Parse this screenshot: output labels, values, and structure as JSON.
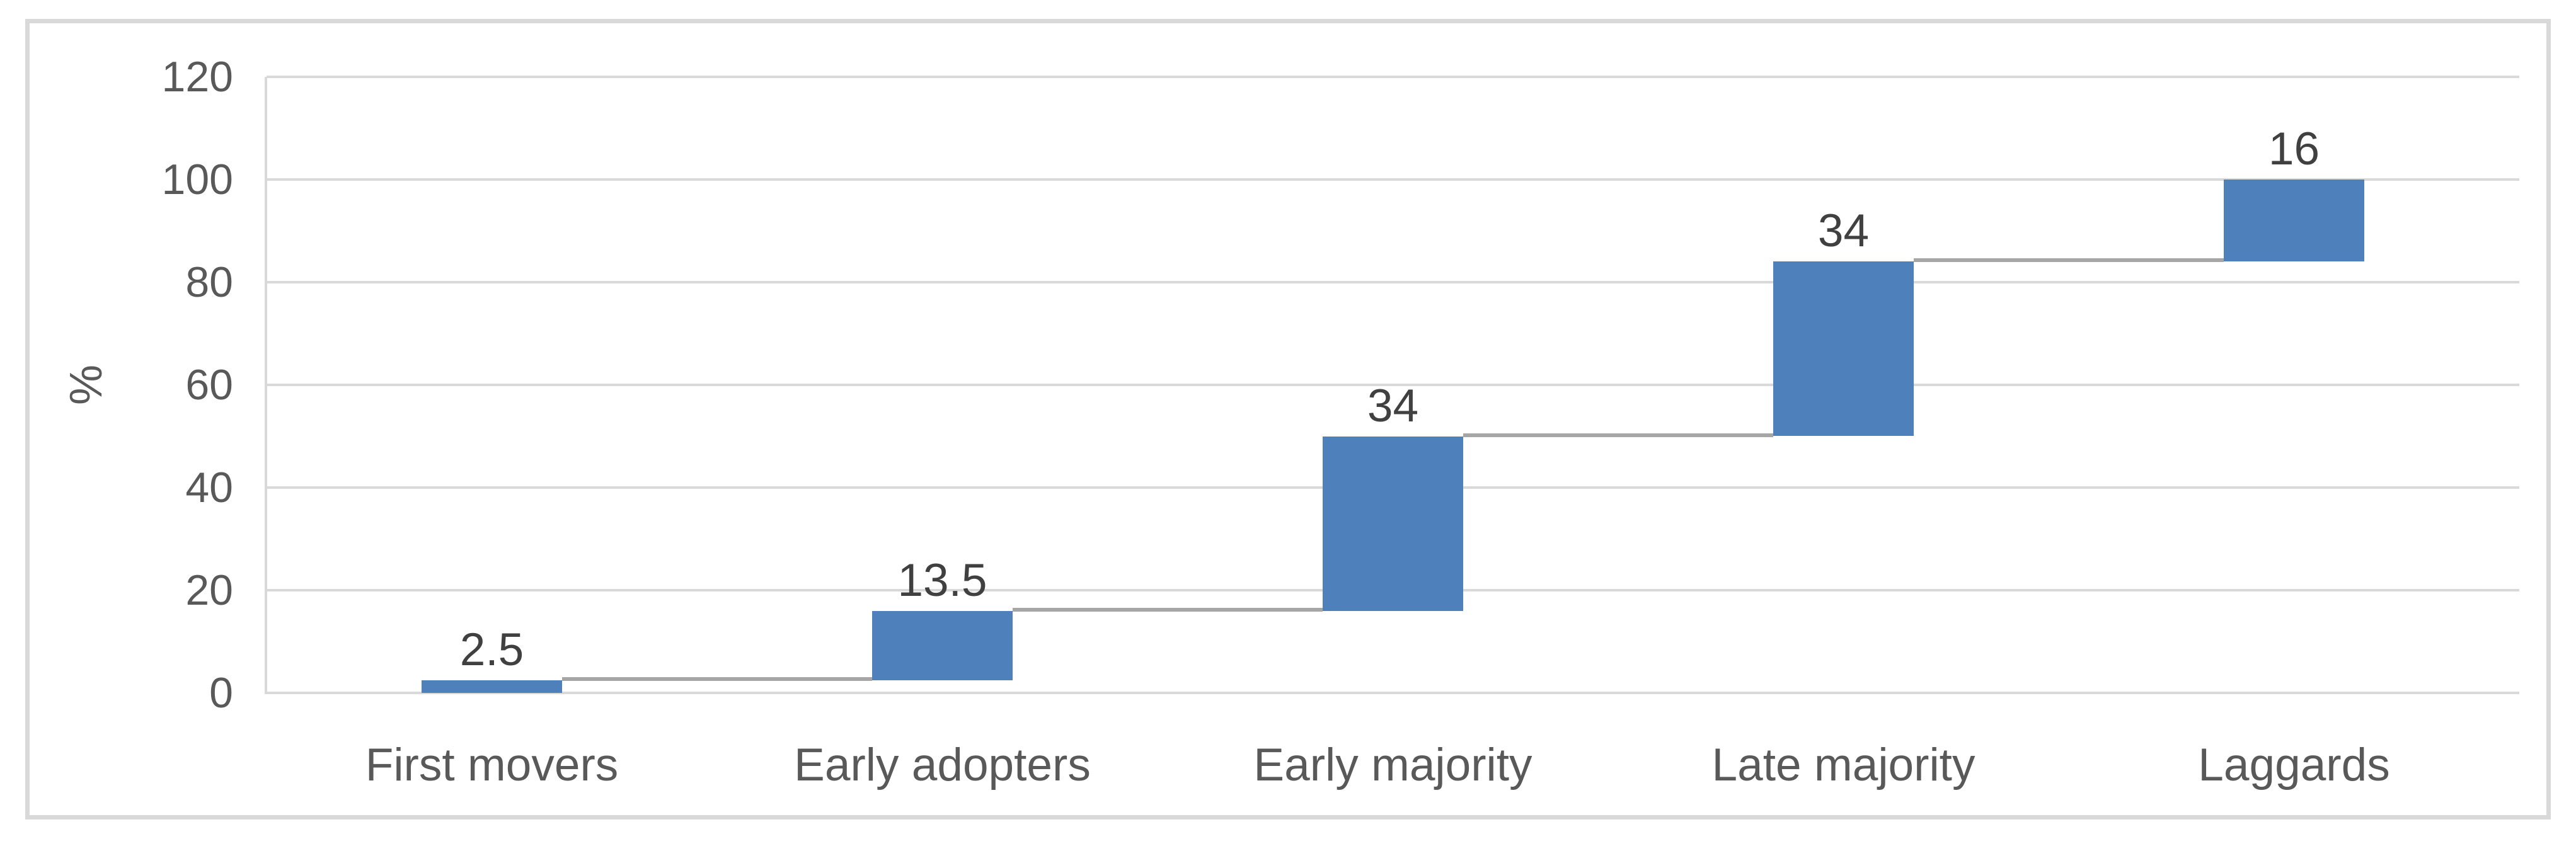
{
  "chart_data": {
    "type": "bar",
    "subtype": "waterfall",
    "title": "",
    "categories": [
      "First movers",
      "Early adopters",
      "Early majority",
      "Late majority",
      "Laggards"
    ],
    "values": [
      2.5,
      13.5,
      34,
      34,
      16
    ],
    "cumulative_start": [
      0,
      2.5,
      16,
      50,
      84
    ],
    "cumulative_end": [
      2.5,
      16,
      50,
      84,
      100
    ],
    "data_labels": [
      "2.5",
      "13.5",
      "34",
      "34",
      "16"
    ],
    "xlabel": "",
    "ylabel": "%",
    "ylim": [
      0,
      120
    ],
    "yticks": [
      0,
      20,
      40,
      60,
      80,
      100,
      120
    ],
    "grid": true,
    "legend": "none",
    "colors": {
      "bar": "#4E80BC",
      "connector": "#A6A6A6",
      "gridline": "#D9D9D9",
      "axis_line": "#D9D9D9",
      "chart_border": "#D9D9D9",
      "tick_label_text": "#595959",
      "category_label_text": "#595959",
      "data_label_text": "#404040",
      "background": "#FFFFFF"
    }
  }
}
